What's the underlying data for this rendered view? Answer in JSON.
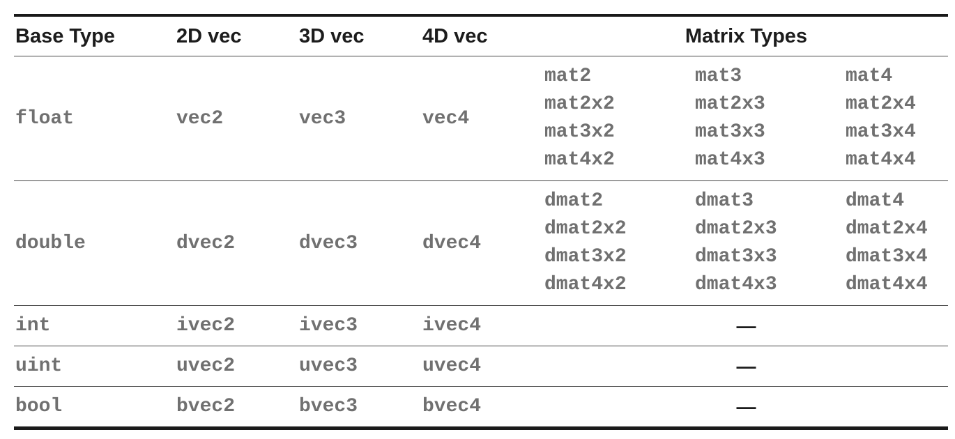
{
  "headers": [
    "Base Type",
    "2D vec",
    "3D vec",
    "4D vec",
    "Matrix Types"
  ],
  "rows": [
    {
      "base": "float",
      "v2": "vec2",
      "v3": "vec3",
      "v4": "vec4",
      "matrix": [
        "mat2",
        "mat3",
        "mat4",
        "mat2x2",
        "mat2x3",
        "mat2x4",
        "mat3x2",
        "mat3x3",
        "mat3x4",
        "mat4x2",
        "mat4x3",
        "mat4x4"
      ]
    },
    {
      "base": "double",
      "v2": "dvec2",
      "v3": "dvec3",
      "v4": "dvec4",
      "matrix": [
        "dmat2",
        "dmat3",
        "dmat4",
        "dmat2x2",
        "dmat2x3",
        "dmat2x4",
        "dmat3x2",
        "dmat3x3",
        "dmat3x4",
        "dmat4x2",
        "dmat4x3",
        "dmat4x4"
      ]
    },
    {
      "base": "int",
      "v2": "ivec2",
      "v3": "ivec3",
      "v4": "ivec4",
      "matrix_none": "—"
    },
    {
      "base": "uint",
      "v2": "uvec2",
      "v3": "uvec3",
      "v4": "uvec4",
      "matrix_none": "—"
    },
    {
      "base": "bool",
      "v2": "bvec2",
      "v3": "bvec3",
      "v4": "bvec4",
      "matrix_none": "—"
    }
  ]
}
